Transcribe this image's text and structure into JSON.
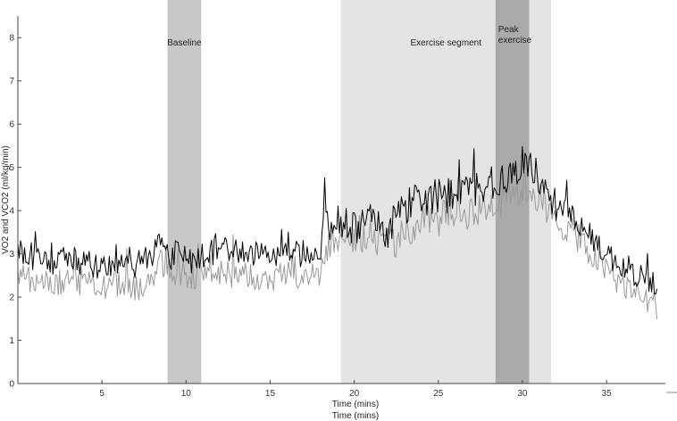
{
  "chart_data": {
    "type": "line",
    "xlabel": "Time (mins)",
    "xlabel_secondary": "Time (mins)",
    "ylabel": "VO2 and VCO2 (ml/kg/min)",
    "xlim": [
      0,
      38.5
    ],
    "ylim": [
      0,
      8.5
    ],
    "x_ticks": [
      5,
      10,
      15,
      20,
      25,
      30,
      35
    ],
    "y_ticks": [
      0,
      1,
      2,
      3,
      4,
      5,
      6,
      7,
      8
    ],
    "grid": false,
    "regions": [
      {
        "label": "Baseline",
        "x_start": 8.9,
        "x_end": 10.9,
        "color": "#c8c8c8"
      },
      {
        "label": "Exercise segment",
        "x_start": 19.2,
        "x_end": 31.7,
        "color": "#e4e4e4"
      },
      {
        "label": "Peak exercise",
        "label_lines": [
          "Peak",
          "exercise"
        ],
        "x_start": 28.4,
        "x_end": 30.4,
        "color": "#aaaaaa"
      }
    ],
    "series": [
      {
        "color": "#000000",
        "x": [
          0,
          1,
          2,
          3,
          4,
          5,
          6,
          7,
          8,
          8.5,
          9,
          9.5,
          10,
          10.5,
          11,
          11.5,
          12,
          13,
          14,
          15,
          16,
          17,
          18,
          18.2,
          18.5,
          19,
          20,
          21,
          22,
          23,
          24,
          25,
          26,
          27,
          28,
          29,
          29.5,
          30,
          30.5,
          31,
          31.5,
          32,
          33,
          34,
          35,
          36,
          37,
          38
        ],
        "y": [
          3.1,
          2.9,
          2.8,
          2.85,
          2.8,
          2.7,
          2.8,
          2.75,
          2.9,
          3.5,
          2.9,
          3.1,
          2.95,
          2.7,
          2.95,
          3.0,
          3.3,
          3.05,
          2.9,
          2.95,
          3.05,
          3.0,
          3.1,
          4.3,
          3.6,
          3.7,
          3.6,
          3.8,
          3.5,
          4.1,
          4.3,
          4.3,
          4.4,
          4.5,
          4.6,
          4.7,
          4.9,
          5.1,
          5.0,
          4.8,
          4.3,
          4.1,
          3.9,
          3.4,
          3.0,
          2.7,
          2.5,
          2.3
        ]
      },
      {
        "color": "#999999",
        "x": [
          0,
          1,
          2,
          3,
          4,
          5,
          6,
          7,
          8,
          8.5,
          9,
          9.5,
          10,
          10.5,
          11,
          11.5,
          12,
          13,
          14,
          15,
          16,
          17,
          18,
          18.2,
          18.5,
          19,
          20,
          21,
          22,
          23,
          24,
          25,
          26,
          27,
          28,
          29,
          29.5,
          30,
          30.5,
          31,
          31.5,
          32,
          33,
          34,
          35,
          36,
          37,
          38
        ],
        "y": [
          2.55,
          2.4,
          2.3,
          2.35,
          2.3,
          2.25,
          2.3,
          2.2,
          2.4,
          2.8,
          2.55,
          2.6,
          2.55,
          2.4,
          2.5,
          2.55,
          2.6,
          2.5,
          2.45,
          2.4,
          2.5,
          2.45,
          2.5,
          3.0,
          3.2,
          3.4,
          3.3,
          3.4,
          3.2,
          3.5,
          3.7,
          3.8,
          3.9,
          4.0,
          4.1,
          4.3,
          4.4,
          4.5,
          4.5,
          4.3,
          3.9,
          3.7,
          3.5,
          3.0,
          2.6,
          2.3,
          2.0,
          1.8
        ]
      }
    ]
  }
}
